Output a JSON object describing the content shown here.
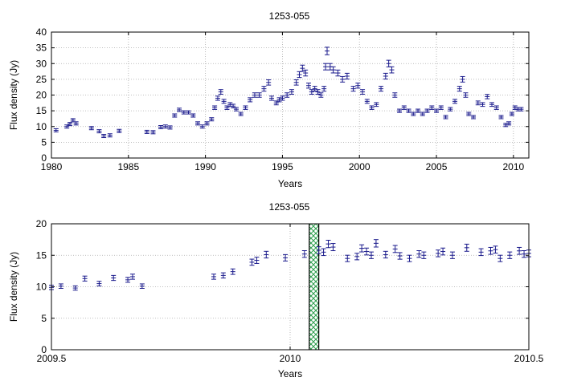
{
  "chart_data": [
    {
      "type": "scatter",
      "title": "1253-055",
      "xlabel": "Years",
      "ylabel": "Flux density (Jy)",
      "xlim": [
        1980,
        2011
      ],
      "ylim": [
        0,
        40
      ],
      "xticks": [
        1980,
        1985,
        1990,
        1995,
        2000,
        2005,
        2010
      ],
      "yticks": [
        0,
        5,
        10,
        15,
        20,
        25,
        30,
        35,
        40
      ],
      "grid": true,
      "marker_color": "#1a1a8c",
      "series": [
        {
          "x": [
            1980.3,
            1981.0,
            1981.2,
            1981.4,
            1981.6,
            1982.6,
            1983.1,
            1983.4,
            1983.8,
            1984.4,
            1986.2,
            1986.6,
            1987.1,
            1987.4,
            1987.7,
            1988.0,
            1988.3,
            1988.6,
            1988.9,
            1989.2,
            1989.5,
            1989.8,
            1990.1,
            1990.4,
            1990.6,
            1990.8,
            1991.0,
            1991.2,
            1991.4,
            1991.6,
            1991.8,
            1992.0,
            1992.3,
            1992.6,
            1992.9,
            1993.2,
            1993.5,
            1993.8,
            1994.1,
            1994.3,
            1994.6,
            1994.8,
            1995.0,
            1995.3,
            1995.6,
            1995.9,
            1996.1,
            1996.3,
            1996.5,
            1996.7,
            1996.9,
            1997.1,
            1997.3,
            1997.5,
            1997.7,
            1997.8,
            1997.9,
            1998.1,
            1998.3,
            1998.6,
            1998.9,
            1999.2,
            1999.6,
            1999.9,
            2000.2,
            2000.5,
            2000.8,
            2001.1,
            2001.4,
            2001.7,
            2001.9,
            2002.1,
            2002.3,
            2002.6,
            2002.9,
            2003.2,
            2003.5,
            2003.8,
            2004.1,
            2004.4,
            2004.7,
            2005.0,
            2005.3,
            2005.6,
            2005.9,
            2006.2,
            2006.5,
            2006.7,
            2006.9,
            2007.1,
            2007.4,
            2007.7,
            2008.0,
            2008.3,
            2008.6,
            2008.9,
            2009.2,
            2009.5,
            2009.7,
            2009.9,
            2010.1,
            2010.3,
            2010.5
          ],
          "y": [
            8.8,
            10.0,
            10.8,
            12.0,
            11.0,
            9.5,
            8.5,
            7.0,
            7.2,
            8.6,
            8.3,
            8.2,
            9.8,
            10.0,
            9.7,
            13.5,
            15.3,
            14.5,
            14.5,
            13.5,
            11.0,
            10.0,
            11.0,
            12.3,
            16.0,
            19.0,
            21.0,
            18.0,
            16.0,
            17.0,
            16.5,
            15.5,
            14.0,
            16.0,
            18.5,
            20.0,
            20.0,
            22.0,
            24.0,
            19.0,
            17.5,
            18.5,
            19.0,
            20.0,
            21.0,
            24.0,
            26.5,
            28.5,
            27.0,
            23.0,
            21.0,
            22.0,
            21.0,
            20.0,
            22.0,
            29.0,
            34.0,
            29.0,
            28.0,
            27.0,
            25.0,
            26.0,
            22.0,
            23.0,
            21.0,
            18.0,
            16.0,
            17.0,
            22.0,
            26.0,
            30.0,
            28.0,
            20.0,
            15.0,
            16.0,
            15.0,
            14.0,
            15.0,
            14.0,
            15.0,
            16.0,
            15.0,
            16.0,
            13.0,
            15.5,
            18.0,
            22.0,
            25.0,
            20.0,
            14.0,
            13.0,
            17.5,
            17.0,
            19.5,
            17.0,
            16.0,
            13.0,
            10.5,
            11.0,
            14.0,
            16.0,
            15.5,
            15.5
          ]
        }
      ]
    },
    {
      "type": "scatter",
      "title": "1253-055",
      "xlabel": "Years",
      "ylabel": "Flux density (Jy)",
      "xlim": [
        2009.5,
        2010.5
      ],
      "ylim": [
        0,
        20
      ],
      "xticks": [
        2009.5,
        2010,
        2010.5
      ],
      "yticks": [
        0,
        5,
        10,
        15,
        20
      ],
      "grid": true,
      "highlight_band": [
        2010.04,
        2010.06
      ],
      "highlight_color": "#2a9d4b",
      "marker_color": "#1a1a8c",
      "series": [
        {
          "x": [
            2009.5,
            2009.52,
            2009.55,
            2009.57,
            2009.6,
            2009.63,
            2009.66,
            2009.67,
            2009.69,
            2009.84,
            2009.86,
            2009.88,
            2009.92,
            2009.93,
            2009.95,
            2009.99,
            2010.03,
            2010.06,
            2010.07,
            2010.08,
            2010.09,
            2010.12,
            2010.14,
            2010.15,
            2010.16,
            2010.17,
            2010.18,
            2010.2,
            2010.22,
            2010.23,
            2010.25,
            2010.27,
            2010.28,
            2010.31,
            2010.32,
            2010.34,
            2010.37,
            2010.4,
            2010.42,
            2010.43,
            2010.44,
            2010.46,
            2010.48,
            2010.49,
            2010.5
          ],
          "y": [
            9.9,
            10.1,
            9.8,
            11.3,
            10.5,
            11.4,
            11.1,
            11.6,
            10.1,
            11.6,
            11.8,
            12.4,
            13.9,
            14.2,
            15.1,
            14.6,
            15.2,
            15.8,
            15.5,
            16.8,
            16.3,
            14.5,
            14.8,
            16.1,
            15.6,
            15.0,
            16.9,
            15.1,
            16.0,
            14.9,
            14.5,
            15.2,
            15.0,
            15.3,
            15.6,
            15.0,
            16.2,
            15.5,
            15.7,
            15.9,
            14.5,
            15.0,
            15.7,
            15.2,
            15.3
          ]
        }
      ]
    }
  ]
}
